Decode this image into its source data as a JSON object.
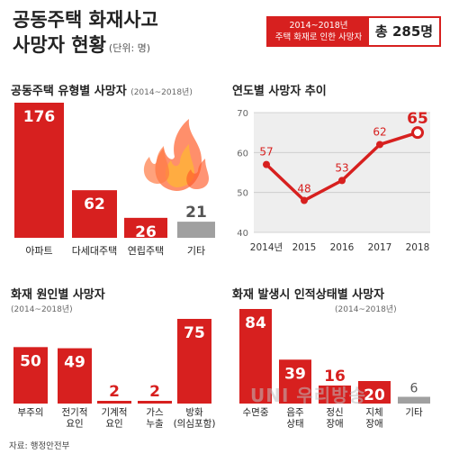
{
  "header": {
    "title_line1": "공동주택 화재사고",
    "title_line2": "사망자 현황",
    "unit": "(단위: 명)",
    "total_period": "2014~2018년",
    "total_caption": "주택 화재로 인한 사망자",
    "total_value": "총 285명"
  },
  "source": "자료: 행정안전부",
  "watermark": "UNI 우리방송",
  "colors": {
    "accent": "#d7201f",
    "gray": "#a0a0a0",
    "panel": "#eeeeee"
  },
  "icons": [
    "fire-icon"
  ],
  "chart_data": [
    {
      "id": "type",
      "type": "bar",
      "title": "공동주택 유형별 사망자",
      "period": "(2014~2018년)",
      "categories": [
        "아파트",
        "다세대주택",
        "연립주택",
        "기타"
      ],
      "values": [
        176,
        62,
        26,
        21
      ]
    },
    {
      "id": "trend",
      "type": "line",
      "title": "연도별 사망자 추이",
      "x": [
        "2014년",
        "2015",
        "2016",
        "2017",
        "2018"
      ],
      "values": [
        57,
        48,
        53,
        62,
        65
      ],
      "ylim": [
        40,
        70
      ],
      "yticks": [
        40,
        50,
        60,
        70
      ],
      "grid": true
    },
    {
      "id": "cause",
      "type": "bar",
      "title": "화재 원인별 사망자",
      "period": "(2014~2018년)",
      "categories": [
        "부주의",
        "전기적\n요인",
        "기계적\n요인",
        "가스\n누출",
        "방화\n(의심포함)"
      ],
      "values": [
        50,
        49,
        2,
        2,
        75
      ]
    },
    {
      "id": "condition",
      "type": "bar",
      "title": "화재 발생시 인적상태별 사망자",
      "period": "(2014~2018년)",
      "categories": [
        "수면중",
        "음주\n상태",
        "정신\n장애",
        "지체\n장애",
        "기타"
      ],
      "values": [
        84,
        39,
        16,
        20,
        6
      ]
    }
  ]
}
